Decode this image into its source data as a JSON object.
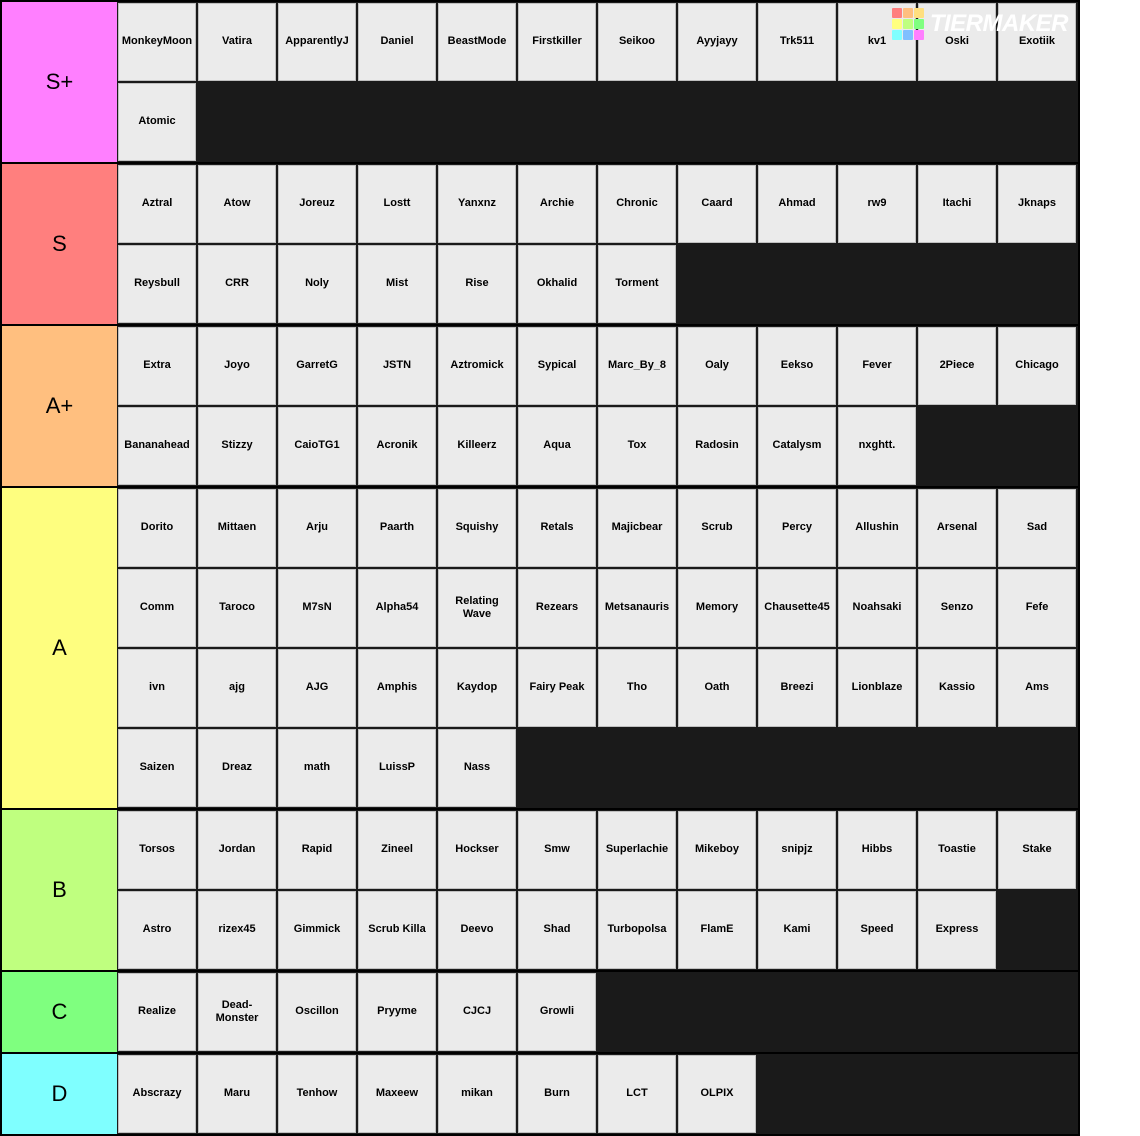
{
  "logo": {
    "text": "TIERMAKER",
    "grid_colors": [
      "#ff7f7f",
      "#ffbf7f",
      "#ffdf7f",
      "#ffff7f",
      "#bfff7f",
      "#7fff7f",
      "#7fffff",
      "#7fbfff",
      "#ff7fff"
    ]
  },
  "layout": {
    "item_width": 78,
    "item_height": 78,
    "label_width": 115,
    "item_bg": "#ebebeb",
    "item_border": "#bfbfbf",
    "container_bg": "#1a1a1a",
    "row_border": "#000000",
    "label_fontsize": 22,
    "item_fontsize": 11
  },
  "tiers": [
    {
      "label": "S+",
      "color": "#ff7fff",
      "items": [
        "MonkeyMoon",
        "Vatira",
        "ApparentlyJ",
        "Daniel",
        "BeastMode",
        "Firstkiller",
        "Seikoo",
        "Ayyjayy",
        "Trk511",
        "kv1",
        "Oski",
        "Exotiik",
        "Atomic"
      ]
    },
    {
      "label": "S",
      "color": "#ff7f7e",
      "items": [
        "Aztral",
        "Atow",
        "Joreuz",
        "Lostt",
        "Yanxnz",
        "Archie",
        "Chronic",
        "Caard",
        "Ahmad",
        "rw9",
        "Itachi",
        "Jknaps",
        "Reysbull",
        "CRR",
        "Noly",
        "Mist",
        "Rise",
        "Okhalid",
        "Torment"
      ]
    },
    {
      "label": "A+",
      "color": "#ffbf7f",
      "items": [
        "Extra",
        "Joyo",
        "GarretG",
        "JSTN",
        "Aztromick",
        "Sypical",
        "Marc_By_8",
        "Oaly",
        "Eekso",
        "Fever",
        "2Piece",
        "Chicago",
        "Bananahead",
        "Stizzy",
        "CaioTG1",
        "Acronik",
        "Killeerz",
        "Aqua",
        "Tox",
        "Radosin",
        "Catalysm",
        "nxghtt."
      ]
    },
    {
      "label": "A",
      "color": "#fefe7f",
      "items": [
        "Dorito",
        "Mittaen",
        "Arju",
        "Paarth",
        "Squishy",
        "Retals",
        "Majicbear",
        "Scrub",
        "Percy",
        "Allushin",
        "Arsenal",
        "Sad",
        "Comm",
        "Taroco",
        "M7sN",
        "Alpha54",
        "Relating Wave",
        "Rezears",
        "Metsanauris",
        "Memory",
        "Chausette45",
        "Noahsaki",
        "Senzo",
        "Fefe",
        "ivn",
        "ajg",
        "AJG",
        "Amphis",
        "Kaydop",
        "Fairy Peak",
        "Tho",
        "Oath",
        "Breezi",
        "Lionblaze",
        "Kassio",
        "Ams",
        "Saizen",
        "Dreaz",
        "math",
        "LuissP",
        "Nass"
      ]
    },
    {
      "label": "B",
      "color": "#bfff7f",
      "items": [
        "Torsos",
        "Jordan",
        "Rapid",
        "Zineel",
        "Hockser",
        "Smw",
        "Superlachie",
        "Mikeboy",
        "snipjz",
        "Hibbs",
        "Toastie",
        "Stake",
        "Astro",
        "rizex45",
        "Gimmick",
        "Scrub Killa",
        "Deevo",
        "Shad",
        "Turbopolsa",
        "FlamE",
        "Kami",
        "Speed",
        "Express"
      ]
    },
    {
      "label": "C",
      "color": "#7fff7f",
      "items": [
        "Realize",
        "Dead-Monster",
        "Oscillon",
        "Pryyme",
        "CJCJ",
        "Growli"
      ]
    },
    {
      "label": "D",
      "color": "#7fffff",
      "items": [
        "Abscrazy",
        "Maru",
        "Tenhow",
        "Maxeew",
        "mikan",
        "Burn",
        "LCT",
        "OLPIX"
      ]
    }
  ]
}
